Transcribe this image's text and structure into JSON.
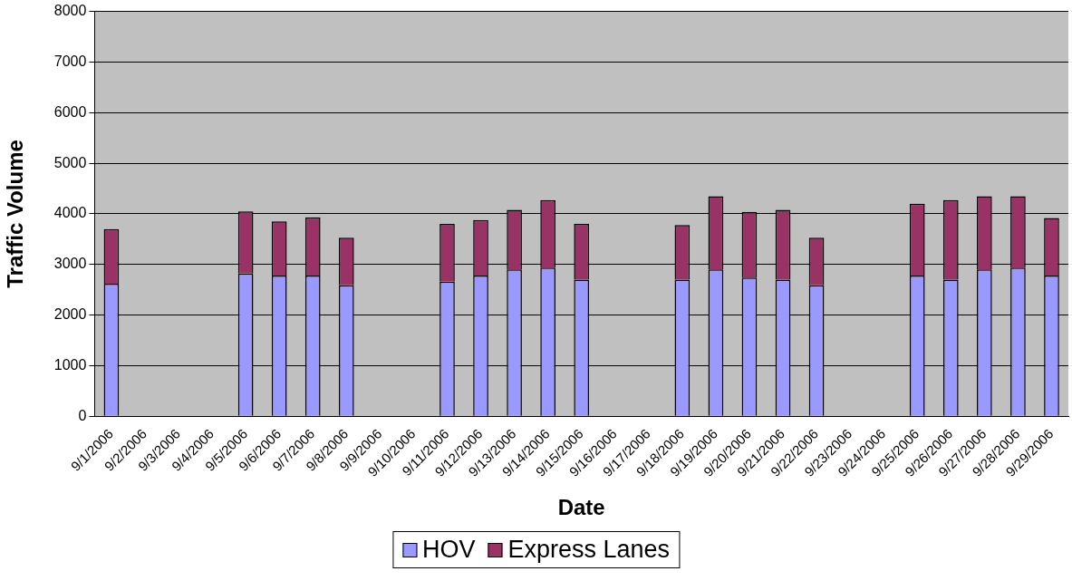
{
  "chart_data": {
    "type": "bar",
    "stacked": true,
    "xlabel": "Date",
    "ylabel": "Traffic Volume",
    "categories": [
      "9/1/2006",
      "9/2/2006",
      "9/3/2006",
      "9/4/2006",
      "9/5/2006",
      "9/6/2006",
      "9/7/2006",
      "9/8/2006",
      "9/9/2006",
      "9/10/2006",
      "9/11/2006",
      "9/12/2006",
      "9/13/2006",
      "9/14/2006",
      "9/15/2006",
      "9/16/2006",
      "9/17/2006",
      "9/18/2006",
      "9/19/2006",
      "9/20/2006",
      "9/21/2006",
      "9/22/2006",
      "9/23/2006",
      "9/24/2006",
      "9/25/2006",
      "9/26/2006",
      "9/27/2006",
      "9/28/2006",
      "9/29/2006"
    ],
    "series": [
      {
        "name": "HOV",
        "color": "#9999ff",
        "values": [
          2620,
          null,
          null,
          null,
          2820,
          2780,
          2780,
          2590,
          null,
          null,
          2660,
          2780,
          2900,
          2940,
          2700,
          null,
          null,
          2700,
          2900,
          2740,
          2700,
          2590,
          null,
          null,
          2780,
          2700,
          2900,
          2940,
          2780
        ]
      },
      {
        "name": "Express Lanes",
        "color": "#993366",
        "values": [
          1080,
          null,
          null,
          null,
          1230,
          1070,
          1150,
          940,
          null,
          null,
          1140,
          1100,
          1180,
          1330,
          1100,
          null,
          null,
          1080,
          1450,
          1300,
          1380,
          940,
          null,
          null,
          1420,
          1570,
          1450,
          1410,
          1140
        ]
      }
    ],
    "ylim": [
      0,
      8000
    ],
    "yticks": [
      0,
      1000,
      2000,
      3000,
      4000,
      5000,
      6000,
      7000,
      8000
    ],
    "grid": "y",
    "legend": "bottom"
  }
}
